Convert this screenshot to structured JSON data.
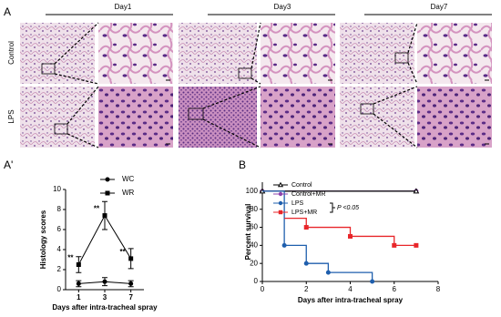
{
  "panel_a": {
    "label": "A",
    "days": [
      "Day1",
      "Day3",
      "Day7"
    ],
    "rows": [
      "Control",
      "LPS"
    ]
  },
  "chart_data": [
    {
      "type": "line",
      "label": "A'",
      "categories": [
        "1",
        "3",
        "7"
      ],
      "xlabel": "Days after intra-tracheal spray",
      "ylabel": "Histology scores",
      "ylim": [
        0,
        10
      ],
      "yticks": [
        0,
        2,
        4,
        6,
        8,
        10
      ],
      "series": [
        {
          "name": "WC",
          "color": "#000000",
          "marker": "circle",
          "values": [
            0.6,
            0.8,
            0.6
          ],
          "errors": [
            0.3,
            0.4,
            0.3
          ]
        },
        {
          "name": "WR",
          "color": "#000000",
          "marker": "square",
          "values": [
            2.5,
            7.4,
            3.1
          ],
          "errors": [
            0.8,
            1.4,
            1.0
          ],
          "significance": [
            "**",
            "**",
            "**"
          ]
        }
      ]
    },
    {
      "type": "step",
      "label": "B",
      "xlabel": "Days after intra-tracheal spray",
      "ylabel": "Percent survival",
      "xlim": [
        0,
        8
      ],
      "xticks": [
        0,
        2,
        4,
        6,
        8
      ],
      "ylim": [
        0,
        110
      ],
      "yticks": [
        0,
        20,
        40,
        60,
        80,
        100
      ],
      "legend": "top-right",
      "annotation": "P <0.05",
      "series": [
        {
          "name": "Control",
          "color": "#000000",
          "marker": "triangle",
          "x": [
            0,
            7
          ],
          "values": [
            100,
            100
          ]
        },
        {
          "name": "Control+MR",
          "color": "#8e44ad",
          "marker": "circle",
          "x": [
            0,
            7
          ],
          "values": [
            100,
            100
          ]
        },
        {
          "name": "LPS",
          "color": "#1f5fad",
          "marker": "circle",
          "x": [
            0,
            1,
            2,
            3,
            5
          ],
          "values": [
            100,
            40,
            20,
            10,
            0
          ]
        },
        {
          "name": "LPS+MR",
          "color": "#e8262a",
          "marker": "square",
          "x": [
            1,
            2,
            4,
            6,
            7
          ],
          "values": [
            70,
            60,
            50,
            40,
            40
          ]
        }
      ]
    }
  ]
}
